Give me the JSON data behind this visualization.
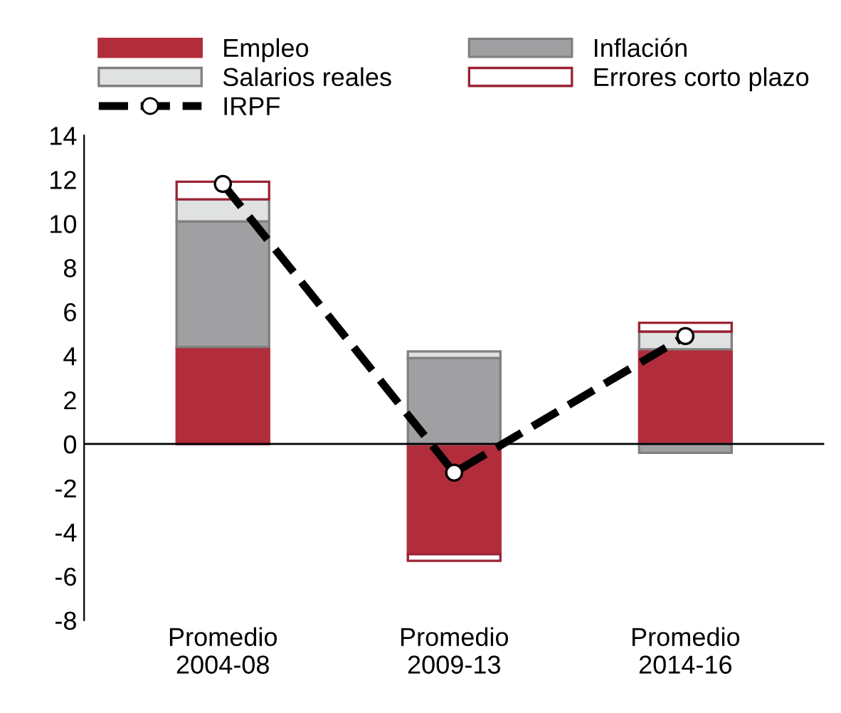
{
  "chart_data": {
    "type": "bar",
    "stacked": true,
    "categories": [
      "Promedio\n2004-08",
      "Promedio\n2009-13",
      "Promedio\n2014-16"
    ],
    "series": [
      {
        "name": "Empleo",
        "color": "#b22d3b",
        "values": [
          4.4,
          -5.0,
          4.3
        ]
      },
      {
        "name": "Inflación",
        "color": "#a0a0a2",
        "values": [
          5.7,
          3.9,
          -0.4
        ]
      },
      {
        "name": "Salarios reales",
        "color": "#e0e1e1",
        "values": [
          1.0,
          0.3,
          0.8
        ]
      },
      {
        "name": "Errores corto plazo",
        "color": "#ffffff",
        "values": [
          0.8,
          -0.3,
          0.4
        ]
      },
      {
        "name": "IRPF",
        "type": "line",
        "color": "#000000",
        "values": [
          11.8,
          -1.3,
          4.9
        ],
        "marker": "circle",
        "line_style": "dashed"
      }
    ],
    "ylim": [
      -8,
      14
    ],
    "yticks": [
      -8,
      -6,
      -4,
      -2,
      0,
      2,
      4,
      6,
      8,
      10,
      12,
      14
    ],
    "grid": false,
    "legend": "top",
    "ref_lines": [
      {
        "axis": "y",
        "value": 0,
        "color": "#000000",
        "line_style": "solid"
      }
    ]
  }
}
